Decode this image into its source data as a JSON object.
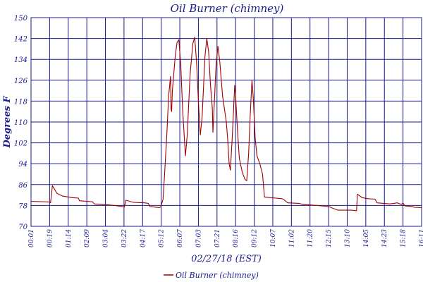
{
  "chart_data": {
    "type": "line",
    "title": "Oil Burner (chimney)",
    "xlabel": "02/27/18 (EST)",
    "ylabel": "Degrees F",
    "ylim": [
      70,
      150
    ],
    "y_ticks": [
      70,
      78,
      86,
      94,
      102,
      110,
      118,
      126,
      134,
      142,
      150
    ],
    "x_tick_labels": [
      "00:01",
      "00:19",
      "01:14",
      "02:09",
      "03:04",
      "03:22",
      "04:17",
      "05:12",
      "06:07",
      "07:03",
      "07:21",
      "08:16",
      "09:12",
      "10:07",
      "11:02",
      "11:20",
      "12:15",
      "13:10",
      "14:05",
      "14:23",
      "15:18",
      "16:11"
    ],
    "grid": true,
    "legend_position": "bottom",
    "series": [
      {
        "name": "Oil Burner (chimney)",
        "color": "#a00000",
        "points": [
          [
            0.0,
            79.6
          ],
          [
            1.0,
            79.3
          ],
          [
            1.05,
            79.0
          ],
          [
            1.15,
            85.6
          ],
          [
            1.4,
            82.6
          ],
          [
            1.7,
            81.6
          ],
          [
            2.2,
            81.0
          ],
          [
            2.55,
            80.8
          ],
          [
            2.6,
            79.8
          ],
          [
            3.3,
            79.4
          ],
          [
            3.4,
            78.6
          ],
          [
            4.2,
            78.2
          ],
          [
            4.5,
            78.0
          ],
          [
            4.9,
            77.6
          ],
          [
            5.02,
            77.4
          ],
          [
            5.1,
            80.0
          ],
          [
            5.5,
            79.2
          ],
          [
            6.1,
            79.0
          ],
          [
            6.3,
            78.8
          ],
          [
            6.4,
            77.6
          ],
          [
            6.9,
            77.2
          ],
          [
            6.97,
            77.4
          ],
          [
            7.1,
            80.4
          ],
          [
            7.2,
            92.0
          ],
          [
            7.3,
            105.0
          ],
          [
            7.4,
            120.0
          ],
          [
            7.5,
            127.5
          ],
          [
            7.53,
            115.0
          ],
          [
            7.56,
            114.0
          ],
          [
            7.6,
            122.0
          ],
          [
            7.75,
            135.0
          ],
          [
            7.85,
            140.5
          ],
          [
            7.95,
            141.5
          ],
          [
            8.05,
            132.0
          ],
          [
            8.15,
            115.0
          ],
          [
            8.3,
            97.0
          ],
          [
            8.4,
            105.0
          ],
          [
            8.55,
            128.0
          ],
          [
            8.7,
            140.0
          ],
          [
            8.8,
            142.5
          ],
          [
            8.9,
            133.0
          ],
          [
            9.0,
            118.0
          ],
          [
            9.1,
            105.0
          ],
          [
            9.2,
            112.0
          ],
          [
            9.35,
            135.0
          ],
          [
            9.45,
            142.0
          ],
          [
            9.55,
            137.0
          ],
          [
            9.65,
            124.0
          ],
          [
            9.75,
            115.0
          ],
          [
            9.78,
            106.0
          ],
          [
            9.82,
            112.0
          ],
          [
            9.95,
            132.0
          ],
          [
            10.05,
            139.0
          ],
          [
            10.15,
            133.0
          ],
          [
            10.3,
            120.0
          ],
          [
            10.5,
            110.0
          ],
          [
            10.58,
            103.0
          ],
          [
            10.65,
            94.0
          ],
          [
            10.72,
            91.5
          ],
          [
            10.82,
            104.0
          ],
          [
            10.95,
            124.0
          ],
          [
            11.0,
            120.0
          ],
          [
            11.1,
            107.0
          ],
          [
            11.2,
            96.0
          ],
          [
            11.35,
            91.0
          ],
          [
            11.5,
            88.0
          ],
          [
            11.6,
            87.5
          ],
          [
            11.7,
            98.0
          ],
          [
            11.78,
            112.0
          ],
          [
            11.88,
            126.0
          ],
          [
            11.95,
            119.0
          ],
          [
            12.05,
            104.0
          ],
          [
            12.15,
            97.0
          ],
          [
            12.3,
            94.0
          ],
          [
            12.45,
            90.0
          ],
          [
            12.55,
            81.2
          ],
          [
            13.5,
            80.6
          ],
          [
            13.6,
            80.2
          ],
          [
            13.8,
            79.0
          ],
          [
            14.4,
            78.8
          ],
          [
            14.6,
            78.4
          ],
          [
            15.4,
            78.0
          ],
          [
            16.0,
            77.6
          ],
          [
            16.2,
            77.0
          ],
          [
            16.5,
            76.2
          ],
          [
            17.2,
            76.2
          ],
          [
            17.5,
            76.0
          ],
          [
            17.55,
            82.3
          ],
          [
            17.8,
            81.0
          ],
          [
            18.1,
            80.6
          ],
          [
            18.5,
            80.4
          ],
          [
            18.6,
            79.0
          ],
          [
            19.3,
            78.6
          ],
          [
            19.7,
            79.0
          ],
          [
            19.9,
            78.4
          ],
          [
            20.0,
            78.9
          ],
          [
            20.1,
            77.8
          ],
          [
            20.5,
            77.6
          ],
          [
            20.6,
            77.3
          ],
          [
            21.0,
            77.2
          ]
        ]
      }
    ]
  }
}
